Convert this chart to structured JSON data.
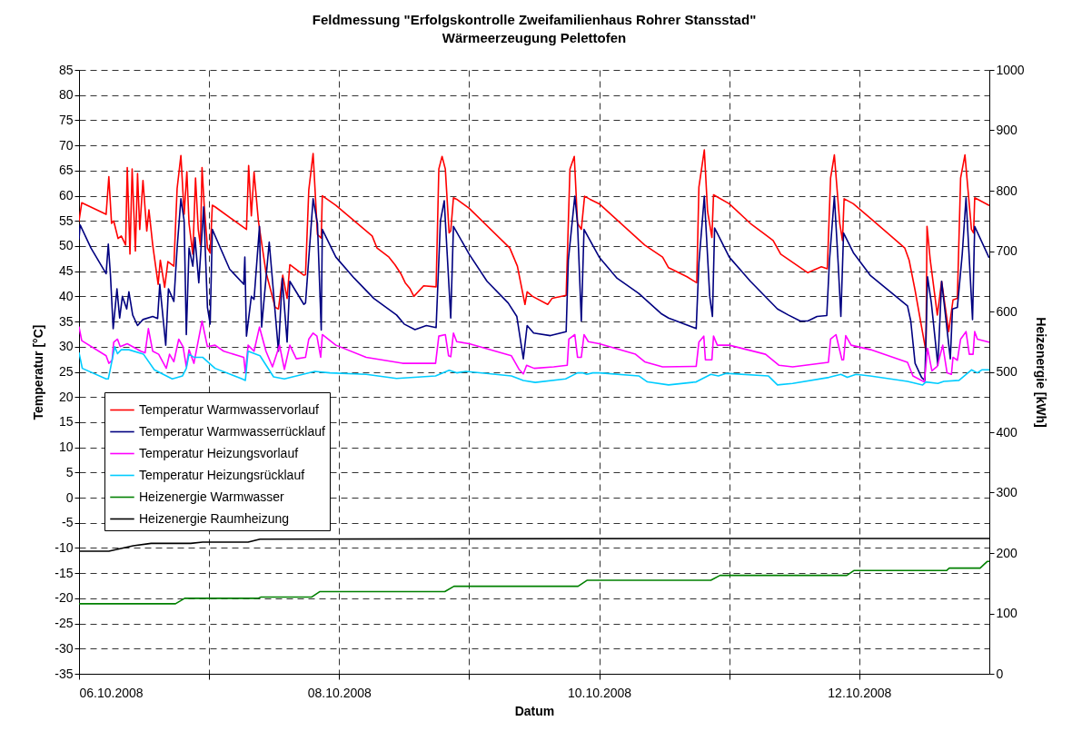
{
  "chart_data": {
    "type": "line",
    "title": "Feldmessung \"Erfolgskontrolle Zweifamilienhaus Rohrer Stansstad\"",
    "subtitle": "Wärmeerzeugung Pelettofen",
    "xlabel": "Datum",
    "ylabel": "Temperatur [°C]",
    "y2label": "Heizenergie [kWh]",
    "xlim": [
      "2008-10-06T00:00",
      "2008-10-13T00:00"
    ],
    "xticks": [
      {
        "value": "2008-10-06T00:00",
        "label": "06.10.2008"
      },
      {
        "value": "2008-10-07T00:00",
        "label": null
      },
      {
        "value": "2008-10-08T00:00",
        "label": "08.10.2008"
      },
      {
        "value": "2008-10-09T00:00",
        "label": null
      },
      {
        "value": "2008-10-10T00:00",
        "label": "10.10.2008"
      },
      {
        "value": "2008-10-11T00:00",
        "label": null
      },
      {
        "value": "2008-10-12T00:00",
        "label": "12.10.2008"
      }
    ],
    "ylim": [
      -35,
      85
    ],
    "yticks": [
      -35,
      -30,
      -25,
      -20,
      -15,
      -10,
      -5,
      0,
      5,
      10,
      15,
      20,
      25,
      30,
      35,
      40,
      45,
      50,
      55,
      60,
      65,
      70,
      75,
      80,
      85
    ],
    "y2lim": [
      0,
      1000
    ],
    "y2ticks": [
      0,
      100,
      200,
      300,
      400,
      500,
      600,
      700,
      800,
      900,
      1000
    ],
    "grid": true,
    "legend": "left",
    "line_style": "solid",
    "series": [
      {
        "name": "Temperatur Warmwasservorlauf",
        "color": "#ff0000",
        "x": [
          "2008-10-06T00:00",
          "2008-10-06T00:30",
          "2008-10-06T05:00",
          "2008-10-06T05:30",
          "2008-10-06T06:00",
          "2008-10-06T06:24",
          "2008-10-06T07:12",
          "2008-10-06T07:48",
          "2008-10-06T08:36",
          "2008-10-06T08:54",
          "2008-10-06T09:24",
          "2008-10-06T09:48",
          "2008-10-06T10:24",
          "2008-10-06T10:48",
          "2008-10-06T11:12",
          "2008-10-06T11:48",
          "2008-10-06T12:30",
          "2008-10-06T12:54",
          "2008-10-06T13:36",
          "2008-10-06T14:36",
          "2008-10-06T15:00",
          "2008-10-06T15:48",
          "2008-10-06T16:24",
          "2008-10-06T17:30",
          "2008-10-06T18:06",
          "2008-10-06T18:48",
          "2008-10-06T19:24",
          "2008-10-06T19:54",
          "2008-10-06T20:18",
          "2008-10-06T21:00",
          "2008-10-06T21:30",
          "2008-10-06T22:00",
          "2008-10-06T22:24",
          "2008-10-06T22:42",
          "2008-10-06T23:06",
          "2008-10-06T23:42",
          "2008-10-07T00:12",
          "2008-10-07T00:36",
          "2008-10-07T01:06",
          "2008-10-07T06:54",
          "2008-10-07T07:18",
          "2008-10-07T07:48",
          "2008-10-07T08:18",
          "2008-10-07T09:06",
          "2008-10-07T10:30",
          "2008-10-07T12:12",
          "2008-10-07T12:48",
          "2008-10-07T13:36",
          "2008-10-07T14:24",
          "2008-10-07T14:54",
          "2008-10-07T17:30",
          "2008-10-07T17:48",
          "2008-10-07T18:24",
          "2008-10-07T19:12",
          "2008-10-07T20:00",
          "2008-10-07T20:42",
          "2008-10-07T20:54",
          "2008-10-07T23:24",
          "2008-10-08T06:06",
          "2008-10-08T07:00",
          "2008-10-08T09:12",
          "2008-10-08T10:18",
          "2008-10-08T11:24",
          "2008-10-08T12:12",
          "2008-10-08T13:06",
          "2008-10-08T13:48",
          "2008-10-08T15:36",
          "2008-10-08T17:54",
          "2008-10-08T18:24",
          "2008-10-08T19:00",
          "2008-10-08T19:36",
          "2008-10-08T20:18",
          "2008-10-08T20:36",
          "2008-10-08T21:06",
          "2008-10-08T21:42",
          "2008-10-09T00:00",
          "2008-10-09T07:30",
          "2008-10-09T08:54",
          "2008-10-09T10:18",
          "2008-10-09T10:42",
          "2008-10-09T11:42",
          "2008-10-09T14:30",
          "2008-10-09T15:18",
          "2008-10-09T17:54",
          "2008-10-09T18:36",
          "2008-10-09T19:24",
          "2008-10-09T20:00",
          "2008-10-09T20:42",
          "2008-10-09T21:18",
          "2008-10-09T22:18",
          "2008-10-10T00:00",
          "2008-10-10T08:24",
          "2008-10-10T11:42",
          "2008-10-10T12:48",
          "2008-10-10T16:12",
          "2008-10-10T18:00",
          "2008-10-10T18:24",
          "2008-10-10T19:24",
          "2008-10-10T20:00",
          "2008-10-10T20:48",
          "2008-10-10T21:06",
          "2008-10-11T00:00",
          "2008-10-11T03:54",
          "2008-10-11T08:06",
          "2008-10-11T09:30",
          "2008-10-11T14:30",
          "2008-10-11T17:00",
          "2008-10-11T18:06",
          "2008-10-11T18:42",
          "2008-10-11T19:24",
          "2008-10-11T20:24",
          "2008-10-11T20:54",
          "2008-10-11T21:12",
          "2008-10-11T22:54",
          "2008-10-12T02:12",
          "2008-10-12T08:24",
          "2008-10-12T09:12",
          "2008-10-12T10:18",
          "2008-10-12T11:30",
          "2008-10-12T12:18",
          "2008-10-12T12:30",
          "2008-10-12T13:06",
          "2008-10-12T14:24",
          "2008-10-12T15:12",
          "2008-10-12T16:30",
          "2008-10-12T17:18",
          "2008-10-12T18:06",
          "2008-10-12T18:42",
          "2008-10-12T19:30",
          "2008-10-12T20:42",
          "2008-10-12T21:06",
          "2008-10-12T21:18",
          "2008-10-12T23:54"
        ],
        "values": [
          55,
          58.6,
          56.3,
          63.8,
          54.5,
          55,
          51.5,
          52,
          50.2,
          65.6,
          48.4,
          65.3,
          49,
          64.4,
          53.3,
          63,
          53,
          57.2,
          50.2,
          42.4,
          47.2,
          41.8,
          46.9,
          46,
          61.4,
          68,
          56.3,
          64.8,
          54.5,
          48.4,
          63.5,
          53.3,
          50.2,
          65.6,
          58.1,
          49.6,
          48.6,
          58.1,
          57.8,
          53.3,
          66,
          56,
          64.7,
          55,
          44.8,
          37.8,
          37.5,
          44.2,
          39.6,
          46.3,
          44.2,
          44.3,
          61.1,
          68.4,
          52.3,
          51.6,
          60,
          58.1,
          52,
          49.6,
          47.8,
          46.3,
          44.5,
          42.7,
          41.5,
          40,
          42.1,
          41.9,
          65.3,
          67.8,
          65.3,
          52.6,
          53,
          59.6,
          59.3,
          57.5,
          49.6,
          46,
          38.4,
          40.9,
          40,
          38.4,
          39.6,
          40.2,
          65.3,
          67.8,
          54.5,
          53.3,
          59.9,
          59.3,
          58.4,
          50.2,
          47.8,
          45.7,
          43.9,
          42.7,
          61.7,
          69.1,
          56.9,
          51.7,
          60.2,
          58.4,
          54.5,
          51.1,
          48.4,
          44.7,
          45.9,
          45.5,
          63.5,
          68.1,
          54.5,
          51.1,
          59.4,
          58.4,
          55.4,
          49.6,
          47.2,
          41.2,
          33.9,
          29.1,
          53.9,
          47.2,
          36.3,
          43,
          33,
          39.3,
          39.6,
          63.5,
          68.1,
          53.3,
          52.6,
          59.6,
          58.1
        ]
      },
      {
        "name": "Temperatur Warmwasserrücklauf",
        "color": "#000080",
        "x": [
          "2008-10-06T00:00",
          "2008-10-06T00:12",
          "2008-10-06T02:12",
          "2008-10-06T05:00",
          "2008-10-06T05:24",
          "2008-10-06T05:48",
          "2008-10-06T06:18",
          "2008-10-06T07:00",
          "2008-10-06T07:30",
          "2008-10-06T08:00",
          "2008-10-06T08:48",
          "2008-10-06T09:12",
          "2008-10-06T09:54",
          "2008-10-06T10:48",
          "2008-10-06T11:48",
          "2008-10-06T13:36",
          "2008-10-06T14:30",
          "2008-10-06T14:54",
          "2008-10-06T16:00",
          "2008-10-06T16:30",
          "2008-10-06T17:30",
          "2008-10-06T18:06",
          "2008-10-06T18:48",
          "2008-10-06T19:24",
          "2008-10-06T19:48",
          "2008-10-06T20:18",
          "2008-10-06T21:00",
          "2008-10-06T21:24",
          "2008-10-06T22:06",
          "2008-10-06T23:00",
          "2008-10-06T23:42",
          "2008-10-07T00:12",
          "2008-10-07T00:36",
          "2008-10-07T03:48",
          "2008-10-07T06:24",
          "2008-10-07T06:36",
          "2008-10-07T06:54",
          "2008-10-07T07:48",
          "2008-10-07T08:18",
          "2008-10-07T09:18",
          "2008-10-07T09:42",
          "2008-10-07T11:06",
          "2008-10-07T12:48",
          "2008-10-07T13:30",
          "2008-10-07T14:24",
          "2008-10-07T14:54",
          "2008-10-07T17:30",
          "2008-10-07T17:48",
          "2008-10-07T19:12",
          "2008-10-07T20:00",
          "2008-10-07T20:42",
          "2008-10-07T20:54",
          "2008-10-07T23:24",
          "2008-10-08T02:48",
          "2008-10-08T06:24",
          "2008-10-08T10:36",
          "2008-10-08T12:00",
          "2008-10-08T14:00",
          "2008-10-08T16:06",
          "2008-10-08T17:54",
          "2008-10-08T18:42",
          "2008-10-08T19:24",
          "2008-10-08T20:36",
          "2008-10-08T21:06",
          "2008-10-09T00:00",
          "2008-10-09T03:18",
          "2008-10-09T07:12",
          "2008-10-09T08:48",
          "2008-10-09T10:00",
          "2008-10-09T10:42",
          "2008-10-09T11:54",
          "2008-10-09T15:00",
          "2008-10-09T17:54",
          "2008-10-09T18:18",
          "2008-10-09T19:30",
          "2008-10-09T20:00",
          "2008-10-09T20:42",
          "2008-10-09T21:12",
          "2008-10-10T00:00",
          "2008-10-10T03:18",
          "2008-10-10T07:18",
          "2008-10-10T11:24",
          "2008-10-10T12:48",
          "2008-10-10T17:54",
          "2008-10-10T18:24",
          "2008-10-10T19:24",
          "2008-10-10T20:24",
          "2008-10-10T20:54",
          "2008-10-10T21:18",
          "2008-10-11T00:00",
          "2008-10-11T03:54",
          "2008-10-11T08:54",
          "2008-10-11T10:54",
          "2008-10-11T13:06",
          "2008-10-11T14:30",
          "2008-10-11T16:12",
          "2008-10-11T18:00",
          "2008-10-11T18:30",
          "2008-10-11T19:24",
          "2008-10-11T20:06",
          "2008-10-11T20:36",
          "2008-10-11T21:06",
          "2008-10-11T22:54",
          "2008-10-12T02:00",
          "2008-10-12T08:54",
          "2008-10-12T09:30",
          "2008-10-12T10:18",
          "2008-10-12T11:30",
          "2008-10-12T12:06",
          "2008-10-12T12:36",
          "2008-10-12T13:18",
          "2008-10-12T14:30",
          "2008-10-12T15:12",
          "2008-10-12T15:54",
          "2008-10-12T16:48",
          "2008-10-12T17:12",
          "2008-10-12T18:06",
          "2008-10-12T19:00",
          "2008-10-12T19:42",
          "2008-10-12T20:54",
          "2008-10-12T21:18",
          "2008-10-12T23:54"
        ],
        "values": [
          51.4,
          54.2,
          49.6,
          44.5,
          50.4,
          44.2,
          33.6,
          41.5,
          35.7,
          40,
          37.5,
          40.9,
          36.3,
          34.2,
          35.4,
          36,
          35.6,
          42.4,
          30.3,
          41.5,
          39,
          49.6,
          59.4,
          55,
          32.4,
          49.6,
          46,
          51.7,
          42.7,
          57.8,
          37.8,
          34.5,
          53.3,
          45.4,
          42.4,
          47.8,
          32.1,
          40,
          39.4,
          53.9,
          33.9,
          50.8,
          29.1,
          43.6,
          30.9,
          43,
          38.4,
          38.7,
          59.4,
          54.5,
          33.3,
          53.3,
          47.8,
          43.6,
          39.6,
          36.3,
          34.5,
          33.4,
          34.2,
          33.8,
          55,
          59,
          35.7,
          53.9,
          48.4,
          43,
          38.7,
          36,
          27.6,
          34.2,
          32.7,
          32.2,
          33,
          47.2,
          59.9,
          54.5,
          35.1,
          53.3,
          47.8,
          43.6,
          40.6,
          36.6,
          35.7,
          33.6,
          46.6,
          59.9,
          40,
          36,
          53.6,
          47.8,
          43,
          37.5,
          36.3,
          35.1,
          35.1,
          36,
          36.2,
          47.2,
          59.9,
          46.6,
          36,
          52.6,
          48.7,
          44.2,
          38.1,
          35.1,
          26.7,
          23.9,
          23.3,
          43.9,
          38.7,
          26.3,
          43,
          36.3,
          27.6,
          37.5,
          37.8,
          48.4,
          59.6,
          35.4,
          53.9,
          47.8
        ]
      },
      {
        "name": "Temperatur Heizungsvorlauf",
        "color": "#ff00ff",
        "x": [
          "2008-10-06T00:00",
          "2008-10-06T00:30",
          "2008-10-06T05:00",
          "2008-10-06T05:30",
          "2008-10-06T06:06",
          "2008-10-06T06:24",
          "2008-10-06T07:06",
          "2008-10-06T07:36",
          "2008-10-06T08:54",
          "2008-10-06T11:24",
          "2008-10-06T12:12",
          "2008-10-06T12:48",
          "2008-10-06T13:36",
          "2008-10-06T14:42",
          "2008-10-06T16:06",
          "2008-10-06T16:42",
          "2008-10-06T17:30",
          "2008-10-06T18:24",
          "2008-10-06T19:12",
          "2008-10-06T19:48",
          "2008-10-06T20:18",
          "2008-10-06T21:12",
          "2008-10-06T22:42",
          "2008-10-06T23:42",
          "2008-10-07T01:06",
          "2008-10-07T02:42",
          "2008-10-07T06:24",
          "2008-10-07T06:42",
          "2008-10-07T07:12",
          "2008-10-07T08:18",
          "2008-10-07T09:18",
          "2008-10-07T10:30",
          "2008-10-07T11:42",
          "2008-10-07T13:00",
          "2008-10-07T13:54",
          "2008-10-07T14:54",
          "2008-10-07T16:06",
          "2008-10-07T17:48",
          "2008-10-07T18:24",
          "2008-10-07T19:12",
          "2008-10-07T19:54",
          "2008-10-07T20:36",
          "2008-10-07T20:54",
          "2008-10-07T23:24",
          "2008-10-08T05:00",
          "2008-10-08T11:42",
          "2008-10-08T17:48",
          "2008-10-08T18:24",
          "2008-10-08T19:36",
          "2008-10-08T20:12",
          "2008-10-08T20:36",
          "2008-10-08T21:06",
          "2008-10-08T21:42",
          "2008-10-09T00:00",
          "2008-10-09T07:48",
          "2008-10-09T09:12",
          "2008-10-09T10:00",
          "2008-10-09T10:36",
          "2008-10-09T12:00",
          "2008-10-09T15:36",
          "2008-10-09T18:06",
          "2008-10-09T18:24",
          "2008-10-09T19:30",
          "2008-10-09T20:00",
          "2008-10-09T20:42",
          "2008-10-09T21:12",
          "2008-10-09T22:00",
          "2008-10-10T00:00",
          "2008-10-10T06:42",
          "2008-10-10T08:24",
          "2008-10-10T11:42",
          "2008-10-10T17:54",
          "2008-10-10T18:24",
          "2008-10-10T19:18",
          "2008-10-10T19:36",
          "2008-10-10T20:48",
          "2008-10-10T21:06",
          "2008-10-10T21:48",
          "2008-10-11T00:00",
          "2008-10-11T06:42",
          "2008-10-11T09:12",
          "2008-10-11T11:42",
          "2008-10-11T18:18",
          "2008-10-11T18:42",
          "2008-10-11T19:42",
          "2008-10-11T20:48",
          "2008-10-11T21:06",
          "2008-10-11T21:30",
          "2008-10-11T22:30",
          "2008-10-12T02:06",
          "2008-10-12T08:54",
          "2008-10-12T09:54",
          "2008-10-12T12:00",
          "2008-10-12T12:36",
          "2008-10-12T13:24",
          "2008-10-12T14:24",
          "2008-10-12T15:24",
          "2008-10-12T16:12",
          "2008-10-12T17:00",
          "2008-10-12T17:18",
          "2008-10-12T18:06",
          "2008-10-12T18:42",
          "2008-10-12T19:42",
          "2008-10-12T20:18",
          "2008-10-12T21:00",
          "2008-10-12T21:18",
          "2008-10-12T21:48",
          "2008-10-12T23:54"
        ],
        "values": [
          33.9,
          31.2,
          28.2,
          26.7,
          27.3,
          30.9,
          31.5,
          30,
          30.6,
          29.1,
          28.8,
          33.6,
          29.1,
          28.5,
          25.7,
          28.5,
          27,
          31.5,
          30,
          26,
          29.4,
          26.7,
          35.1,
          30,
          30.3,
          29.1,
          27.9,
          24.8,
          30.3,
          29.1,
          33.9,
          29.1,
          26,
          30.3,
          25.5,
          30.3,
          27.6,
          27.9,
          31.5,
          32.7,
          32.1,
          27.9,
          32.4,
          30.3,
          27.9,
          26.7,
          26.7,
          32.1,
          32.4,
          28.2,
          28,
          32.7,
          31,
          30.6,
          28.2,
          25.5,
          24.6,
          26.3,
          25.7,
          26,
          26.3,
          31.5,
          32.4,
          27.9,
          27.9,
          32.4,
          31,
          30.6,
          28.5,
          27,
          26,
          26.1,
          30.9,
          32.1,
          27.4,
          27.4,
          32.1,
          30.3,
          30.3,
          28.5,
          26.3,
          26,
          26.9,
          31.5,
          32.4,
          27.4,
          27.4,
          32.2,
          30.3,
          29.4,
          26.9,
          24.2,
          23,
          29.7,
          25.2,
          26.1,
          30.3,
          24.8,
          24.5,
          27.9,
          27.3,
          31.5,
          33,
          28.5,
          28.5,
          33,
          31.5,
          30.9
        ]
      },
      {
        "name": "Temperatur Heizungsrücklauf",
        "color": "#00ccff",
        "x": [
          "2008-10-06T00:00",
          "2008-10-06T00:36",
          "2008-10-06T05:00",
          "2008-10-06T05:24",
          "2008-10-06T05:48",
          "2008-10-06T06:36",
          "2008-10-06T07:06",
          "2008-10-06T07:48",
          "2008-10-06T09:12",
          "2008-10-06T11:54",
          "2008-10-06T13:54",
          "2008-10-06T17:12",
          "2008-10-06T19:06",
          "2008-10-06T19:48",
          "2008-10-06T20:18",
          "2008-10-06T21:12",
          "2008-10-06T22:48",
          "2008-10-07T01:06",
          "2008-10-07T06:06",
          "2008-10-07T06:42",
          "2008-10-07T07:12",
          "2008-10-07T09:24",
          "2008-10-07T11:54",
          "2008-10-07T13:54",
          "2008-10-07T19:30",
          "2008-10-07T22:18",
          "2008-10-08T05:00",
          "2008-10-08T10:36",
          "2008-10-08T17:48",
          "2008-10-08T20:18",
          "2008-10-08T21:42",
          "2008-10-08T23:24",
          "2008-10-09T07:48",
          "2008-10-09T10:00",
          "2008-10-09T12:12",
          "2008-10-09T17:48",
          "2008-10-09T20:00",
          "2008-10-09T20:54",
          "2008-10-09T21:42",
          "2008-10-09T22:48",
          "2008-10-10T00:00",
          "2008-10-10T07:18",
          "2008-10-10T08:54",
          "2008-10-10T12:48",
          "2008-10-10T17:54",
          "2008-10-10T20:36",
          "2008-10-10T22:00",
          "2008-10-10T23:24",
          "2008-10-11T07:12",
          "2008-10-11T08:54",
          "2008-10-11T11:42",
          "2008-10-11T18:24",
          "2008-10-11T20:36",
          "2008-10-11T21:48",
          "2008-10-11T23:24",
          "2008-10-12T02:00",
          "2008-10-12T08:54",
          "2008-10-12T11:42",
          "2008-10-12T12:18",
          "2008-10-12T14:30",
          "2008-10-12T15:36",
          "2008-10-12T18:24",
          "2008-10-12T20:42",
          "2008-10-12T21:48",
          "2008-10-12T22:36",
          "2008-10-13T00:00"
        ],
        "values": [
          28.8,
          25.7,
          23.6,
          23.6,
          25.7,
          30,
          28.6,
          29.4,
          29.4,
          28.5,
          25.4,
          23.6,
          24.2,
          25.7,
          28.5,
          27.9,
          27.9,
          25.7,
          23.6,
          23.3,
          29.1,
          28.2,
          24,
          23.6,
          25.1,
          24.8,
          24.5,
          23.7,
          24.2,
          25.3,
          24.8,
          25.1,
          24.2,
          23.3,
          22.9,
          23.6,
          24.8,
          24.8,
          24.5,
          24.8,
          24.8,
          24.2,
          23,
          22.4,
          23,
          24.5,
          24.2,
          24.7,
          24.2,
          22.4,
          22.7,
          23.9,
          24.5,
          23.9,
          24.5,
          24.2,
          23.1,
          22.4,
          23,
          22.7,
          23.1,
          23.3,
          25.4,
          24.8,
          25.4,
          25.4
        ]
      },
      {
        "name": "Heizenergie Warmwasser",
        "color": "#008000",
        "axis": "y2",
        "x": [
          "2008-10-06T00:00",
          "2008-10-06T17:48",
          "2008-10-06T19:30",
          "2008-10-07T09:00",
          "2008-10-07T09:36",
          "2008-10-07T18:54",
          "2008-10-07T20:24",
          "2008-10-08T19:30",
          "2008-10-08T21:12",
          "2008-10-09T20:06",
          "2008-10-09T21:48",
          "2008-10-10T20:36",
          "2008-10-10T22:18",
          "2008-10-11T21:42",
          "2008-10-11T23:00",
          "2008-10-12T16:06",
          "2008-10-12T16:36",
          "2008-10-12T22:18",
          "2008-10-12T23:36",
          "2008-10-13T00:00"
        ],
        "values": [
          116,
          116,
          125,
          125,
          127,
          127,
          136,
          136,
          145,
          145,
          155,
          155,
          163,
          163,
          171,
          171,
          175,
          175,
          186,
          186
        ]
      },
      {
        "name": "Heizenergie Raumheizung",
        "color": "#000000",
        "axis": "y2",
        "x": [
          "2008-10-06T00:00",
          "2008-10-06T05:30",
          "2008-10-06T10:00",
          "2008-10-06T13:18",
          "2008-10-06T20:36",
          "2008-10-06T22:48",
          "2008-10-07T07:12",
          "2008-10-07T09:24",
          "2008-10-10T21:12",
          "2008-10-13T00:00"
        ],
        "values": [
          203,
          203,
          212,
          216,
          216,
          218,
          218,
          223,
          224,
          224
        ]
      }
    ]
  }
}
